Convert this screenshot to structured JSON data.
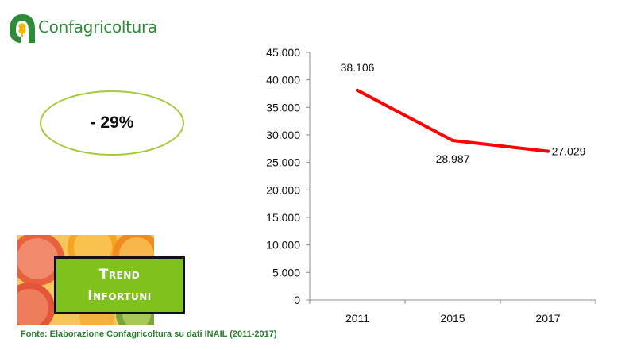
{
  "brand": {
    "name": "Confagricoltura"
  },
  "highlight": {
    "value": "- 29%"
  },
  "badge": {
    "line1": "Trend",
    "line2": "Infortuni"
  },
  "source": "Fonte: Elaborazione Confagricoltura su dati INAIL (2011-2017)",
  "colors": {
    "line": "#ff0000",
    "accent_green": "#80c21c",
    "brand_green": "#2e8b3a"
  },
  "chart_data": {
    "type": "line",
    "categories": [
      "2011",
      "2015",
      "2017"
    ],
    "values": [
      38106,
      28987,
      27029
    ],
    "value_labels": [
      "38.106",
      "28.987",
      "27.029"
    ],
    "ylim": [
      0,
      45000
    ],
    "yticks": [
      0,
      5000,
      10000,
      15000,
      20000,
      25000,
      30000,
      35000,
      40000,
      45000
    ],
    "ytick_labels": [
      "0",
      "5.000",
      "10.000",
      "15.000",
      "20.000",
      "25.000",
      "30.000",
      "35.000",
      "40.000",
      "45.000"
    ],
    "grid": false,
    "legend": "none"
  }
}
